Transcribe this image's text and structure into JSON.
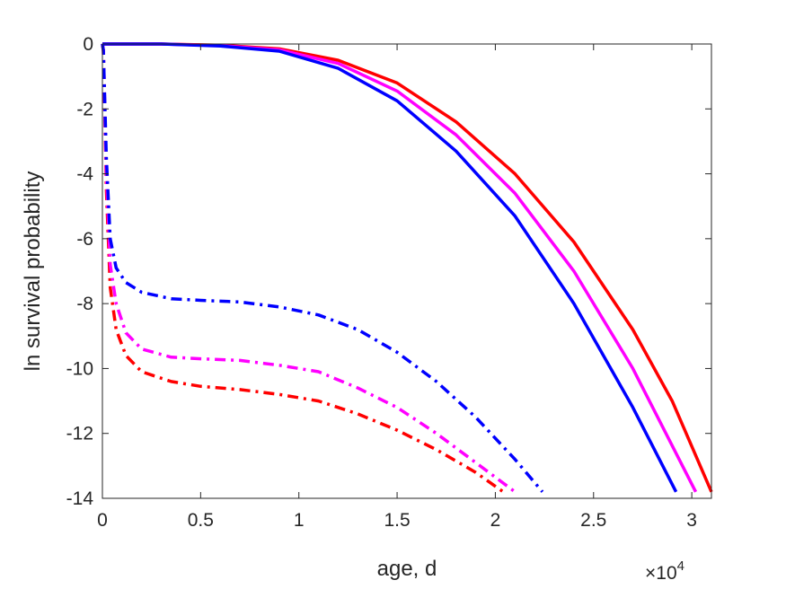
{
  "chart_data": {
    "type": "line",
    "title": "",
    "xlabel": "age, d",
    "ylabel": "ln survival probability",
    "x_exponent_label": "×10",
    "x_exponent_power": "4",
    "xlim": [
      0,
      31000
    ],
    "ylim": [
      -14,
      0
    ],
    "xticks": [
      0,
      5000,
      10000,
      15000,
      20000,
      25000,
      30000
    ],
    "xtick_labels": [
      "0",
      "0.5",
      "1",
      "1.5",
      "2",
      "2.5",
      "3"
    ],
    "yticks": [
      0,
      -2,
      -4,
      -6,
      -8,
      -10,
      -12,
      -14
    ],
    "ytick_labels": [
      "0",
      "-2",
      "-4",
      "-6",
      "-8",
      "-10",
      "-12",
      "-14"
    ],
    "grid": false,
    "box": true,
    "series": [
      {
        "color": "#ff0000",
        "style": "solid",
        "points": [
          [
            0,
            0
          ],
          [
            3000,
            0
          ],
          [
            6000,
            -0.04
          ],
          [
            9000,
            -0.15
          ],
          [
            12000,
            -0.5
          ],
          [
            15000,
            -1.2
          ],
          [
            18000,
            -2.4
          ],
          [
            21000,
            -4.0
          ],
          [
            24000,
            -6.1
          ],
          [
            27000,
            -8.8
          ],
          [
            29000,
            -11.0
          ],
          [
            31000,
            -13.8
          ]
        ]
      },
      {
        "color": "#ff00ff",
        "style": "solid",
        "points": [
          [
            0,
            0
          ],
          [
            3000,
            0
          ],
          [
            6000,
            -0.05
          ],
          [
            9000,
            -0.18
          ],
          [
            12000,
            -0.6
          ],
          [
            15000,
            -1.45
          ],
          [
            18000,
            -2.8
          ],
          [
            21000,
            -4.6
          ],
          [
            24000,
            -7.0
          ],
          [
            27000,
            -10.0
          ],
          [
            30200,
            -13.8
          ]
        ]
      },
      {
        "color": "#0000ff",
        "style": "solid",
        "points": [
          [
            0,
            0
          ],
          [
            3000,
            0
          ],
          [
            6000,
            -0.06
          ],
          [
            9000,
            -0.22
          ],
          [
            12000,
            -0.75
          ],
          [
            15000,
            -1.75
          ],
          [
            18000,
            -3.3
          ],
          [
            21000,
            -5.3
          ],
          [
            24000,
            -8.0
          ],
          [
            27000,
            -11.2
          ],
          [
            29200,
            -13.8
          ]
        ]
      },
      {
        "color": "#ff0000",
        "style": "dashdot",
        "points": [
          [
            0,
            0
          ],
          [
            50,
            -0.2
          ],
          [
            100,
            -1.5
          ],
          [
            200,
            -4.5
          ],
          [
            400,
            -7.5
          ],
          [
            700,
            -8.8
          ],
          [
            1200,
            -9.6
          ],
          [
            2000,
            -10.1
          ],
          [
            3500,
            -10.4
          ],
          [
            5000,
            -10.55
          ],
          [
            7000,
            -10.65
          ],
          [
            9000,
            -10.8
          ],
          [
            11000,
            -11.0
          ],
          [
            13000,
            -11.4
          ],
          [
            15000,
            -11.9
          ],
          [
            17000,
            -12.5
          ],
          [
            19000,
            -13.2
          ],
          [
            20400,
            -13.8
          ]
        ]
      },
      {
        "color": "#ff00ff",
        "style": "dashdot",
        "points": [
          [
            0,
            0
          ],
          [
            50,
            -0.2
          ],
          [
            100,
            -1.4
          ],
          [
            200,
            -4.0
          ],
          [
            400,
            -6.8
          ],
          [
            700,
            -8.0
          ],
          [
            1200,
            -8.9
          ],
          [
            2000,
            -9.4
          ],
          [
            3500,
            -9.65
          ],
          [
            5000,
            -9.7
          ],
          [
            7000,
            -9.75
          ],
          [
            9000,
            -9.9
          ],
          [
            11000,
            -10.1
          ],
          [
            13000,
            -10.6
          ],
          [
            15000,
            -11.2
          ],
          [
            17000,
            -12.0
          ],
          [
            19000,
            -12.9
          ],
          [
            21000,
            -13.8
          ]
        ]
      },
      {
        "color": "#0000ff",
        "style": "dashdot",
        "points": [
          [
            0,
            0
          ],
          [
            50,
            -0.2
          ],
          [
            100,
            -1.3
          ],
          [
            200,
            -3.5
          ],
          [
            400,
            -6.0
          ],
          [
            700,
            -6.9
          ],
          [
            1200,
            -7.35
          ],
          [
            2000,
            -7.65
          ],
          [
            3500,
            -7.85
          ],
          [
            5000,
            -7.9
          ],
          [
            7000,
            -7.95
          ],
          [
            9000,
            -8.1
          ],
          [
            11000,
            -8.35
          ],
          [
            13000,
            -8.8
          ],
          [
            15000,
            -9.5
          ],
          [
            17000,
            -10.4
          ],
          [
            19000,
            -11.5
          ],
          [
            21000,
            -12.8
          ],
          [
            22400,
            -13.8
          ]
        ]
      }
    ]
  }
}
